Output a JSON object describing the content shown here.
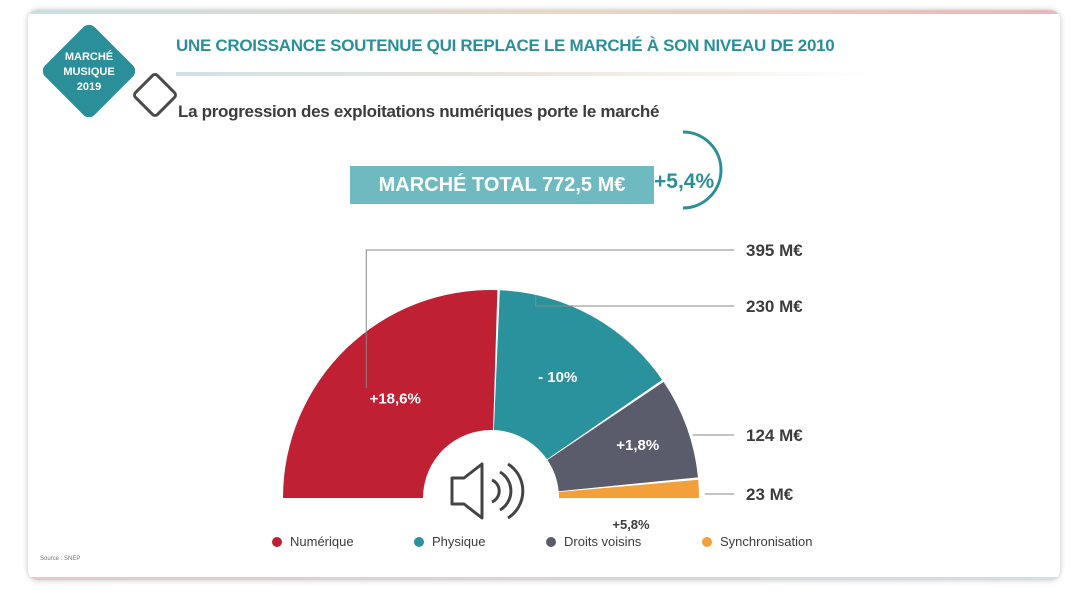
{
  "badge": {
    "line1": "MARCHÉ",
    "line2": "MUSIQUE",
    "line3": "2019"
  },
  "headline": "UNE CROISSANCE SOUTENUE QUI REPLACE LE MARCHÉ À SON NIVEAU DE 2010",
  "subtitle": "La progression des exploitations numériques porte le marché",
  "total": {
    "label": "MARCHÉ TOTAL 772,5 M€",
    "growth": "+5,4%"
  },
  "source": "Source : SNEP",
  "colors": {
    "teal": "#2b8f9a",
    "red": "#bf2033",
    "physique": "#2a929c",
    "grey": "#5a5c6b",
    "orange": "#f2a13a"
  },
  "chart_data": {
    "type": "pie",
    "variant": "half-donut",
    "title": "MARCHÉ TOTAL 772,5 M€",
    "unit": "M€",
    "categories": [
      "Numérique",
      "Physique",
      "Droits voisins",
      "Synchronisation"
    ],
    "values": [
      395,
      230,
      124,
      23
    ],
    "value_labels": [
      "395 M€",
      "230 M€",
      "124 M€",
      "23 M€"
    ],
    "growth_labels": [
      "+18,6%",
      "- 10%",
      "+1,8%",
      "+5,8%"
    ],
    "colors": [
      "#bf2033",
      "#2a929c",
      "#5a5c6b",
      "#f2a13a"
    ],
    "legend": [
      "Numérique",
      "Physique",
      "Droits voisins",
      "Synchronisation"
    ],
    "legend_position": "bottom"
  }
}
